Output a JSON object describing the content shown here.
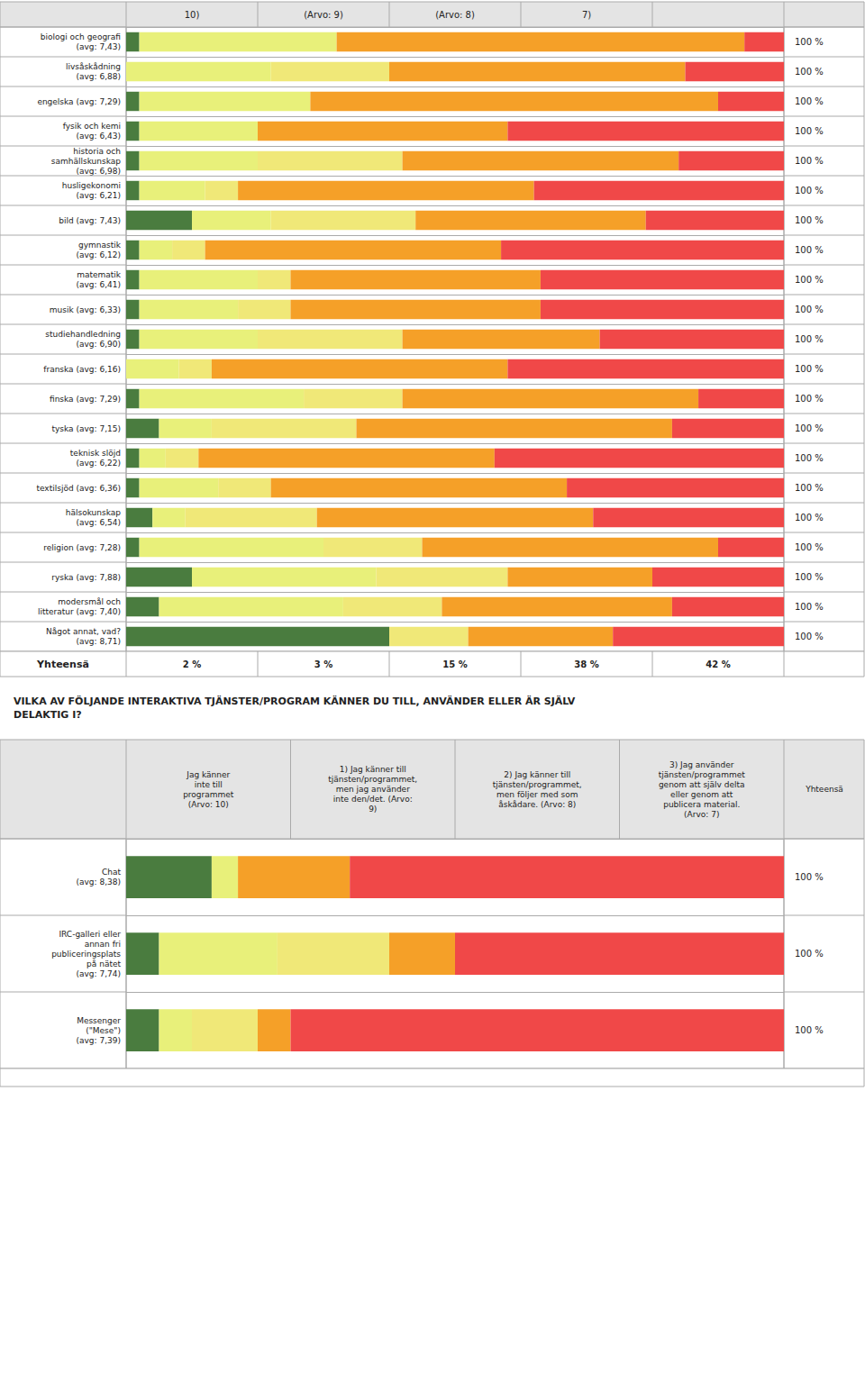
{
  "chart_data": [
    {
      "type": "bar",
      "orientation": "horizontal",
      "stacked": true,
      "grid": false,
      "tick_labels": false,
      "xlim": [
        0,
        100
      ],
      "header_labels": [
        "10)",
        "(Arvo: 9)",
        "(Arvo: 8)",
        "7)"
      ],
      "categories": [
        "biologi och geografi\n(avg: 7,43)",
        "livsåskådning\n(avg: 6,88)",
        "engelska (avg: 7,29)",
        "fysik och kemi\n(avg: 6,43)",
        "historia och\nsamhällskunskap\n(avg: 6,98)",
        "husligekonomi\n(avg: 6,21)",
        "bild (avg: 7,43)",
        "gymnastik\n(avg: 6,12)",
        "matematik\n(avg: 6,41)",
        "musik (avg: 6,33)",
        "studiehandledning\n(avg: 6,90)",
        "franska (avg: 6,16)",
        "finska (avg: 7,29)",
        "tyska (avg: 7,15)",
        "teknisk slöjd\n(avg: 6,22)",
        "textilsjöd (avg: 6,36)",
        "hälsokunskap\n(avg: 6,54)",
        "religion (avg: 7,28)",
        "ryska (avg: 7,88)",
        "modersmål och\nlitteratur (avg: 7,40)",
        "Något annat, vad?\n(avg: 8,71)"
      ],
      "series": [
        {
          "color": "#4a7c3f",
          "values": [
            2,
            0,
            2,
            2,
            2,
            2,
            10,
            2,
            2,
            2,
            2,
            0,
            2,
            5,
            2,
            2,
            4,
            2,
            10,
            5,
            40
          ]
        },
        {
          "color": "#e8f07a",
          "values": [
            30,
            22,
            26,
            18,
            18,
            10,
            12,
            5,
            18,
            15,
            18,
            8,
            25,
            8,
            4,
            12,
            5,
            28,
            28,
            28,
            0
          ]
        },
        {
          "color": "#f0e878",
          "values": [
            0,
            18,
            0,
            0,
            22,
            5,
            22,
            5,
            5,
            8,
            22,
            5,
            15,
            22,
            5,
            8,
            20,
            15,
            20,
            15,
            12
          ]
        },
        {
          "color": "#f5a028",
          "values": [
            62,
            45,
            62,
            38,
            42,
            45,
            35,
            45,
            38,
            38,
            30,
            45,
            45,
            48,
            45,
            45,
            42,
            45,
            22,
            35,
            22
          ]
        },
        {
          "color": "#f04848",
          "values": [
            6,
            15,
            10,
            42,
            16,
            38,
            21,
            43,
            37,
            37,
            28,
            42,
            13,
            17,
            44,
            33,
            29,
            10,
            20,
            17,
            26
          ]
        }
      ],
      "total_labels": [
        "100 %",
        "100 %",
        "100 %",
        "100 %",
        "100 %",
        "100 %",
        "100 %",
        "100 %",
        "100 %",
        "100 %",
        "100 %",
        "100 %",
        "100 %",
        "100 %",
        "100 %",
        "100 %",
        "100 %",
        "100 %",
        "100 %",
        "100 %",
        "100 %"
      ],
      "footer_title": "Yhteensä",
      "footer_labels": [
        "2 %",
        "3 %",
        "15 %",
        "38 %",
        "42 %"
      ]
    },
    {
      "type": "bar",
      "orientation": "horizontal",
      "stacked": true,
      "grid": false,
      "tick_labels": false,
      "title": "VILKA AV FÖLJANDE INTERAKTIVA TJÄNSTER/PROGRAM KÄNNER DU TILL, ANVÄNDER ELLER ÄR SJÄLV\nDELAKTIG I?",
      "xlim": [
        0,
        100
      ],
      "header_labels": [
        "Jag känner\ninte till\nprogrammet\n(Arvo: 10)",
        "1) Jag känner till\ntjänsten/programmet,\nmen jag använder\ninte den/det. (Arvo:\n9)",
        "2) Jag känner till\ntjänsten/programmet,\nmen följer med som\nåskådare. (Arvo: 8)",
        "3) Jag använder\ntjänsten/programmet\ngenom att själv delta\neller genom att\npublicera material.\n(Arvo: 7)",
        "Yhteensä"
      ],
      "categories": [
        "Chat\n(avg: 8,38)",
        "IRC-galleri eller\nannan fri\npubliceringsplats\npå nätet\n(avg: 7,74)",
        "Messenger\n(\"Mese\")\n(avg: 7,39)"
      ],
      "series": [
        {
          "color": "#4a7c3f",
          "values": [
            13,
            5,
            5
          ]
        },
        {
          "color": "#e8f07a",
          "values": [
            4,
            18,
            5
          ]
        },
        {
          "color": "#f0e878",
          "values": [
            0,
            17,
            10
          ]
        },
        {
          "color": "#f5a028",
          "values": [
            17,
            10,
            5
          ]
        },
        {
          "color": "#f04848",
          "values": [
            66,
            50,
            75
          ]
        }
      ],
      "total_labels": [
        "100 %",
        "100 %",
        "100 %"
      ]
    }
  ]
}
